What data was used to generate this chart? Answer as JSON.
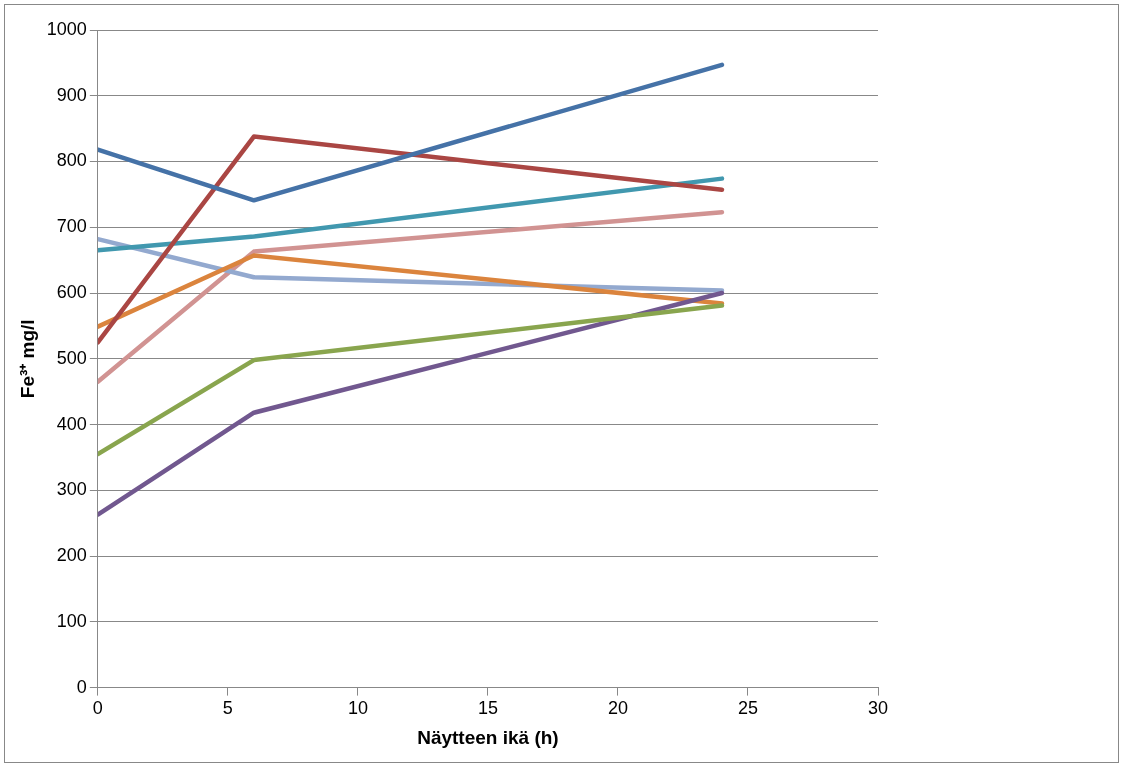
{
  "chart_data": {
    "type": "line",
    "xlabel": "Näytteen ikä (h)",
    "ylabel": "Fe³⁺ mg/l",
    "xlim": [
      0,
      30
    ],
    "xticks": [
      0,
      5,
      10,
      15,
      20,
      25,
      30
    ],
    "ylim": [
      0,
      1000
    ],
    "yticks": [
      0,
      100,
      200,
      300,
      400,
      500,
      600,
      700,
      800,
      900,
      1000
    ],
    "grid": "y",
    "legend": false,
    "marker": "none",
    "line_style": "solid",
    "x": [
      0,
      6,
      24
    ],
    "series": [
      {
        "color": "#4572a7",
        "values": [
          818,
          741,
          947
        ]
      },
      {
        "color": "#aa4643",
        "values": [
          525,
          838,
          757
        ]
      },
      {
        "color": "#89a54e",
        "values": [
          355,
          498,
          581
        ]
      },
      {
        "color": "#71588f",
        "values": [
          263,
          418,
          600
        ]
      },
      {
        "color": "#4198af",
        "values": [
          665,
          686,
          774
        ]
      },
      {
        "color": "#db843d",
        "values": [
          549,
          657,
          584
        ]
      },
      {
        "color": "#93a9cf",
        "values": [
          682,
          624,
          604
        ]
      },
      {
        "color": "#d19392",
        "values": [
          465,
          663,
          723
        ]
      }
    ]
  }
}
